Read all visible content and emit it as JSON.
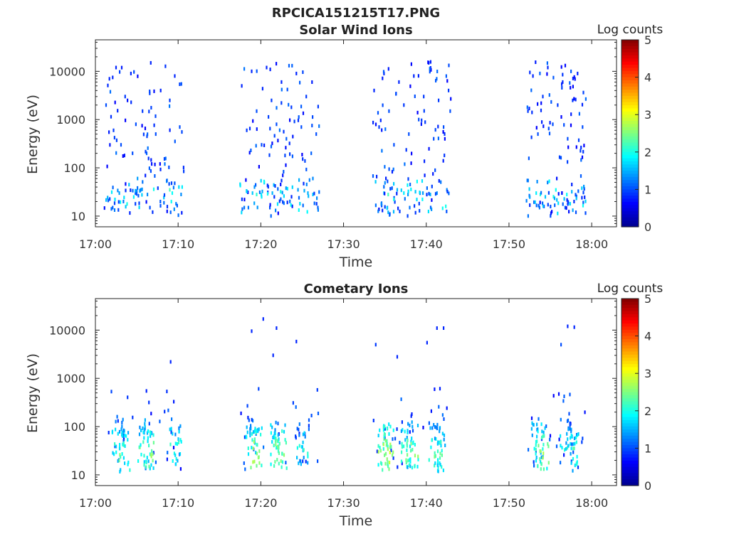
{
  "figure": {
    "title": "RPCICA151215T17.PNG"
  },
  "colorscale": {
    "stops": [
      "#00008f",
      "#0000ff",
      "#0080ff",
      "#00ffff",
      "#80ff80",
      "#ffff00",
      "#ff8000",
      "#ff0000",
      "#800000"
    ]
  },
  "chart_data": [
    {
      "type": "heatmap",
      "title": "Solar Wind Ions",
      "xlabel": "Time",
      "ylabel": "Energy (eV)",
      "x_ticks": [
        "17:00",
        "17:10",
        "17:20",
        "17:30",
        "17:40",
        "17:50",
        "18:00"
      ],
      "x_tick_minutes": [
        0,
        10,
        20,
        30,
        40,
        50,
        60
      ],
      "xlim_minutes": [
        0,
        63
      ],
      "y_ticks": [
        "10",
        "100",
        "1000",
        "10000"
      ],
      "y_tick_values": [
        10,
        100,
        1000,
        10000
      ],
      "ylim": [
        6,
        45000
      ],
      "yscale": "log",
      "colorbar": {
        "label": "Log counts",
        "ticks": [
          "0",
          "1",
          "2",
          "3",
          "4",
          "5"
        ],
        "range": [
          0,
          5
        ]
      },
      "bursts_minutes": [
        [
          1.0,
          10.6
        ],
        [
          17.4,
          27.0
        ],
        [
          33.4,
          43.0
        ],
        [
          52.0,
          59.2
        ]
      ],
      "cells": [
        [
          1.2,
          2000,
          1
        ],
        [
          1.6,
          7000,
          0.8
        ],
        [
          2.1,
          600,
          0.9
        ],
        [
          2.4,
          12000,
          0.8
        ],
        [
          3.0,
          300,
          1
        ],
        [
          3.5,
          3000,
          0.9
        ],
        [
          4.2,
          9000,
          0.8
        ],
        [
          4.8,
          800,
          1
        ],
        [
          5.6,
          1500,
          0.9
        ],
        [
          6.1,
          200,
          1.1
        ],
        [
          6.6,
          15000,
          0.8
        ],
        [
          7.2,
          500,
          1
        ],
        [
          7.8,
          4000,
          0.8
        ],
        [
          8.3,
          120,
          1.2
        ],
        [
          8.9,
          2500,
          0.9
        ],
        [
          9.5,
          8000,
          0.8
        ],
        [
          10.1,
          700,
          1
        ],
        [
          10.4,
          40,
          1.8
        ],
        [
          2.8,
          30,
          1.4
        ],
        [
          3.3,
          20,
          1.2
        ],
        [
          5.4,
          35,
          1.5
        ],
        [
          6.2,
          28,
          1.3
        ],
        [
          8.9,
          35,
          2.2
        ],
        [
          9.2,
          30,
          1.9
        ],
        [
          10.0,
          40,
          1.7
        ],
        [
          2.0,
          15,
          1.1
        ],
        [
          6.5,
          15,
          1.0
        ],
        [
          9.0,
          12,
          1.1
        ],
        [
          5.0,
          60,
          1.4
        ],
        [
          4.4,
          200,
          1.0
        ],
        [
          17.6,
          5000,
          0.8
        ],
        [
          18.2,
          600,
          0.9
        ],
        [
          18.8,
          10000,
          0.8
        ],
        [
          19.4,
          1500,
          1
        ],
        [
          20.0,
          300,
          1
        ],
        [
          20.6,
          12000,
          0.8
        ],
        [
          21.2,
          2500,
          0.9
        ],
        [
          21.8,
          800,
          1
        ],
        [
          22.4,
          6000,
          0.8
        ],
        [
          23.0,
          400,
          1.1
        ],
        [
          23.6,
          1800,
          0.9
        ],
        [
          24.2,
          9000,
          0.8
        ],
        [
          24.8,
          700,
          1
        ],
        [
          25.4,
          3000,
          0.9
        ],
        [
          26.0,
          200,
          1.1
        ],
        [
          26.6,
          500,
          1
        ],
        [
          26.2,
          60,
          1.3
        ],
        [
          18.9,
          30,
          1.6
        ],
        [
          19.4,
          28,
          2.1
        ],
        [
          20.0,
          25,
          1.8
        ],
        [
          21.3,
          30,
          1.5
        ],
        [
          22.3,
          32,
          2.0
        ],
        [
          22.7,
          26,
          1.7
        ],
        [
          24.4,
          35,
          1.4
        ],
        [
          25.6,
          30,
          1.5
        ],
        [
          26.2,
          28,
          1.6
        ],
        [
          17.9,
          15,
          1.2
        ],
        [
          18.4,
          15,
          1.2
        ],
        [
          21.0,
          15,
          1.0
        ],
        [
          26.8,
          15,
          1.1
        ],
        [
          33.6,
          4000,
          0.8
        ],
        [
          34.2,
          700,
          0.9
        ],
        [
          34.8,
          9000,
          0.8
        ],
        [
          35.4,
          1500,
          1
        ],
        [
          36.0,
          300,
          1
        ],
        [
          36.6,
          6000,
          0.8
        ],
        [
          37.2,
          2000,
          0.9
        ],
        [
          37.8,
          500,
          1
        ],
        [
          38.4,
          8000,
          0.8
        ],
        [
          39.0,
          1000,
          1
        ],
        [
          39.6,
          3000,
          0.9
        ],
        [
          40.2,
          15000,
          0.8
        ],
        [
          40.8,
          400,
          1
        ],
        [
          41.4,
          2500,
          0.9
        ],
        [
          42.0,
          700,
          1
        ],
        [
          42.6,
          4000,
          0.9
        ],
        [
          42.8,
          1500,
          1
        ],
        [
          34.8,
          30,
          1.6
        ],
        [
          35.3,
          28,
          2.2
        ],
        [
          36.4,
          35,
          1.5
        ],
        [
          37.2,
          30,
          1.8
        ],
        [
          37.7,
          28,
          1.4
        ],
        [
          38.6,
          32,
          1.6
        ],
        [
          39.5,
          30,
          1.4
        ],
        [
          40.4,
          28,
          1.5
        ],
        [
          41.2,
          30,
          1.3
        ],
        [
          42.4,
          35,
          1.3
        ],
        [
          35.2,
          15,
          1.3
        ],
        [
          37.9,
          15,
          1.2
        ],
        [
          35.3,
          12,
          1.5
        ],
        [
          52.2,
          1500,
          0.9
        ],
        [
          52.8,
          8000,
          0.8
        ],
        [
          53.4,
          500,
          1
        ],
        [
          54.0,
          3000,
          0.9
        ],
        [
          54.6,
          12000,
          0.8
        ],
        [
          55.2,
          800,
          1
        ],
        [
          55.8,
          2000,
          0.9
        ],
        [
          56.4,
          6000,
          0.8
        ],
        [
          57.0,
          400,
          1
        ],
        [
          57.6,
          2500,
          0.9
        ],
        [
          58.2,
          9000,
          0.8
        ],
        [
          58.8,
          700,
          1
        ],
        [
          53.2,
          30,
          1.8
        ],
        [
          53.7,
          28,
          2.0
        ],
        [
          54.3,
          25,
          1.6
        ],
        [
          56.3,
          30,
          1.7
        ],
        [
          56.9,
          28,
          1.9
        ],
        [
          57.5,
          32,
          1.5
        ],
        [
          53.6,
          15,
          1.2
        ],
        [
          56.7,
          15,
          1.1
        ],
        [
          58.0,
          12,
          1.0
        ]
      ]
    },
    {
      "type": "heatmap",
      "title": "Cometary Ions",
      "xlabel": "Time",
      "ylabel": "Energy (eV)",
      "x_ticks": [
        "17:00",
        "17:10",
        "17:20",
        "17:30",
        "17:40",
        "17:50",
        "18:00"
      ],
      "x_tick_minutes": [
        0,
        10,
        20,
        30,
        40,
        50,
        60
      ],
      "xlim_minutes": [
        0,
        63
      ],
      "y_ticks": [
        "10",
        "100",
        "1000",
        "10000"
      ],
      "y_tick_values": [
        10,
        100,
        1000,
        10000
      ],
      "ylim": [
        6,
        45000
      ],
      "yscale": "log",
      "colorbar": {
        "label": "Log counts",
        "ticks": [
          "0",
          "1",
          "2",
          "3",
          "4",
          "5"
        ],
        "range": [
          0,
          5
        ]
      },
      "bursts_minutes": [
        [
          1.0,
          10.6
        ],
        [
          17.4,
          27.0
        ],
        [
          33.4,
          43.0
        ],
        [
          52.0,
          59.2
        ]
      ],
      "ion_clusters": [
        [
          2.6,
          40,
          2.3
        ],
        [
          3.4,
          25,
          2.6
        ],
        [
          5.8,
          35,
          2.5
        ],
        [
          6.4,
          28,
          2.8
        ],
        [
          9.6,
          35,
          2.4
        ],
        [
          18.8,
          40,
          2.2
        ],
        [
          19.3,
          28,
          3.1
        ],
        [
          21.8,
          30,
          2.7
        ],
        [
          22.3,
          26,
          2.9
        ],
        [
          25.0,
          35,
          2.3
        ],
        [
          34.8,
          30,
          2.8
        ],
        [
          35.3,
          26,
          3.2
        ],
        [
          37.6,
          30,
          2.6
        ],
        [
          38.2,
          28,
          2.8
        ],
        [
          41.0,
          30,
          2.7
        ],
        [
          41.6,
          24,
          2.5
        ],
        [
          53.4,
          40,
          2.4
        ],
        [
          54.0,
          28,
          2.9
        ],
        [
          56.8,
          35,
          2.2
        ],
        [
          57.6,
          26,
          2.6
        ]
      ],
      "sparse_high": [
        [
          9.0,
          2200,
          0.8
        ],
        [
          18.8,
          9500,
          0.8
        ],
        [
          20.2,
          17000,
          0.8
        ],
        [
          21.4,
          3000,
          0.8
        ],
        [
          21.8,
          11000,
          0.8
        ],
        [
          24.2,
          5800,
          0.8
        ],
        [
          33.8,
          5000,
          0.9
        ],
        [
          36.4,
          2800,
          0.8
        ],
        [
          40.0,
          5500,
          0.8
        ],
        [
          41.2,
          11000,
          0.8
        ],
        [
          42.0,
          11000,
          0.8
        ],
        [
          56.2,
          5000,
          1.0
        ],
        [
          57.0,
          12000,
          0.8
        ],
        [
          57.8,
          11500,
          0.8
        ]
      ]
    }
  ]
}
